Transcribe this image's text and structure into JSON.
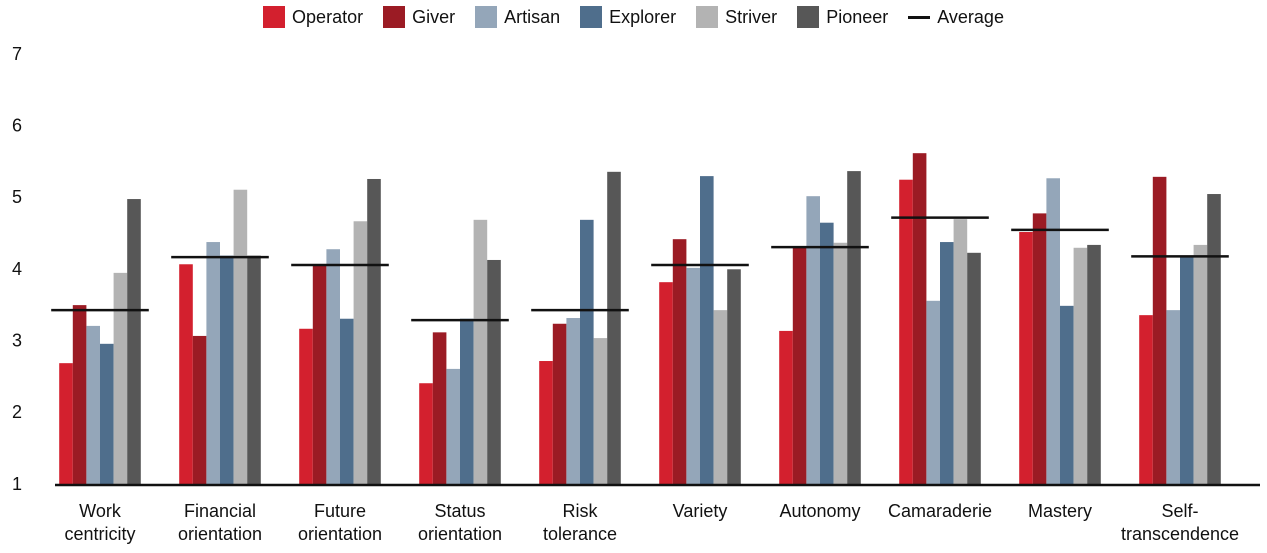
{
  "chart_data": {
    "type": "bar",
    "categories": [
      "Work\ncentricity",
      "Financial\norientation",
      "Future\norientation",
      "Status\norientation",
      "Risk\ntolerance",
      "Variety",
      "Autonomy",
      "Camaraderie",
      "Mastery",
      "Self-\ntranscendence"
    ],
    "series": [
      {
        "name": "Operator",
        "color": "#d3202e",
        "values": [
          2.7,
          4.08,
          3.18,
          2.42,
          2.73,
          3.83,
          3.15,
          5.26,
          4.53,
          3.37
        ]
      },
      {
        "name": "Giver",
        "color": "#9b1b24",
        "values": [
          3.51,
          3.08,
          4.06,
          3.13,
          3.25,
          4.43,
          4.32,
          5.63,
          4.79,
          5.3
        ]
      },
      {
        "name": "Artisan",
        "color": "#94a6b9",
        "values": [
          3.22,
          4.39,
          4.29,
          2.62,
          3.33,
          4.03,
          5.03,
          3.57,
          5.28,
          3.44
        ]
      },
      {
        "name": "Explorer",
        "color": "#4f6e8c",
        "values": [
          2.97,
          4.2,
          3.32,
          3.32,
          4.7,
          5.31,
          4.66,
          4.39,
          3.5,
          4.18
        ]
      },
      {
        "name": "Striver",
        "color": "#b3b3b3",
        "values": [
          3.96,
          5.12,
          4.68,
          4.7,
          3.05,
          3.44,
          4.38,
          4.71,
          4.31,
          4.35
        ]
      },
      {
        "name": "Pioneer",
        "color": "#575757",
        "values": [
          4.99,
          4.2,
          5.27,
          4.14,
          5.37,
          4.01,
          5.38,
          4.24,
          4.35,
          5.06
        ]
      },
      {
        "name": "Average",
        "color": "#111111",
        "style": "line",
        "values": [
          3.44,
          4.18,
          4.07,
          3.3,
          3.44,
          4.07,
          4.32,
          4.73,
          4.56,
          4.19
        ]
      }
    ],
    "ylim": [
      1,
      7
    ],
    "yticks": [
      1,
      2,
      3,
      4,
      5,
      6,
      7
    ],
    "grid": false
  }
}
